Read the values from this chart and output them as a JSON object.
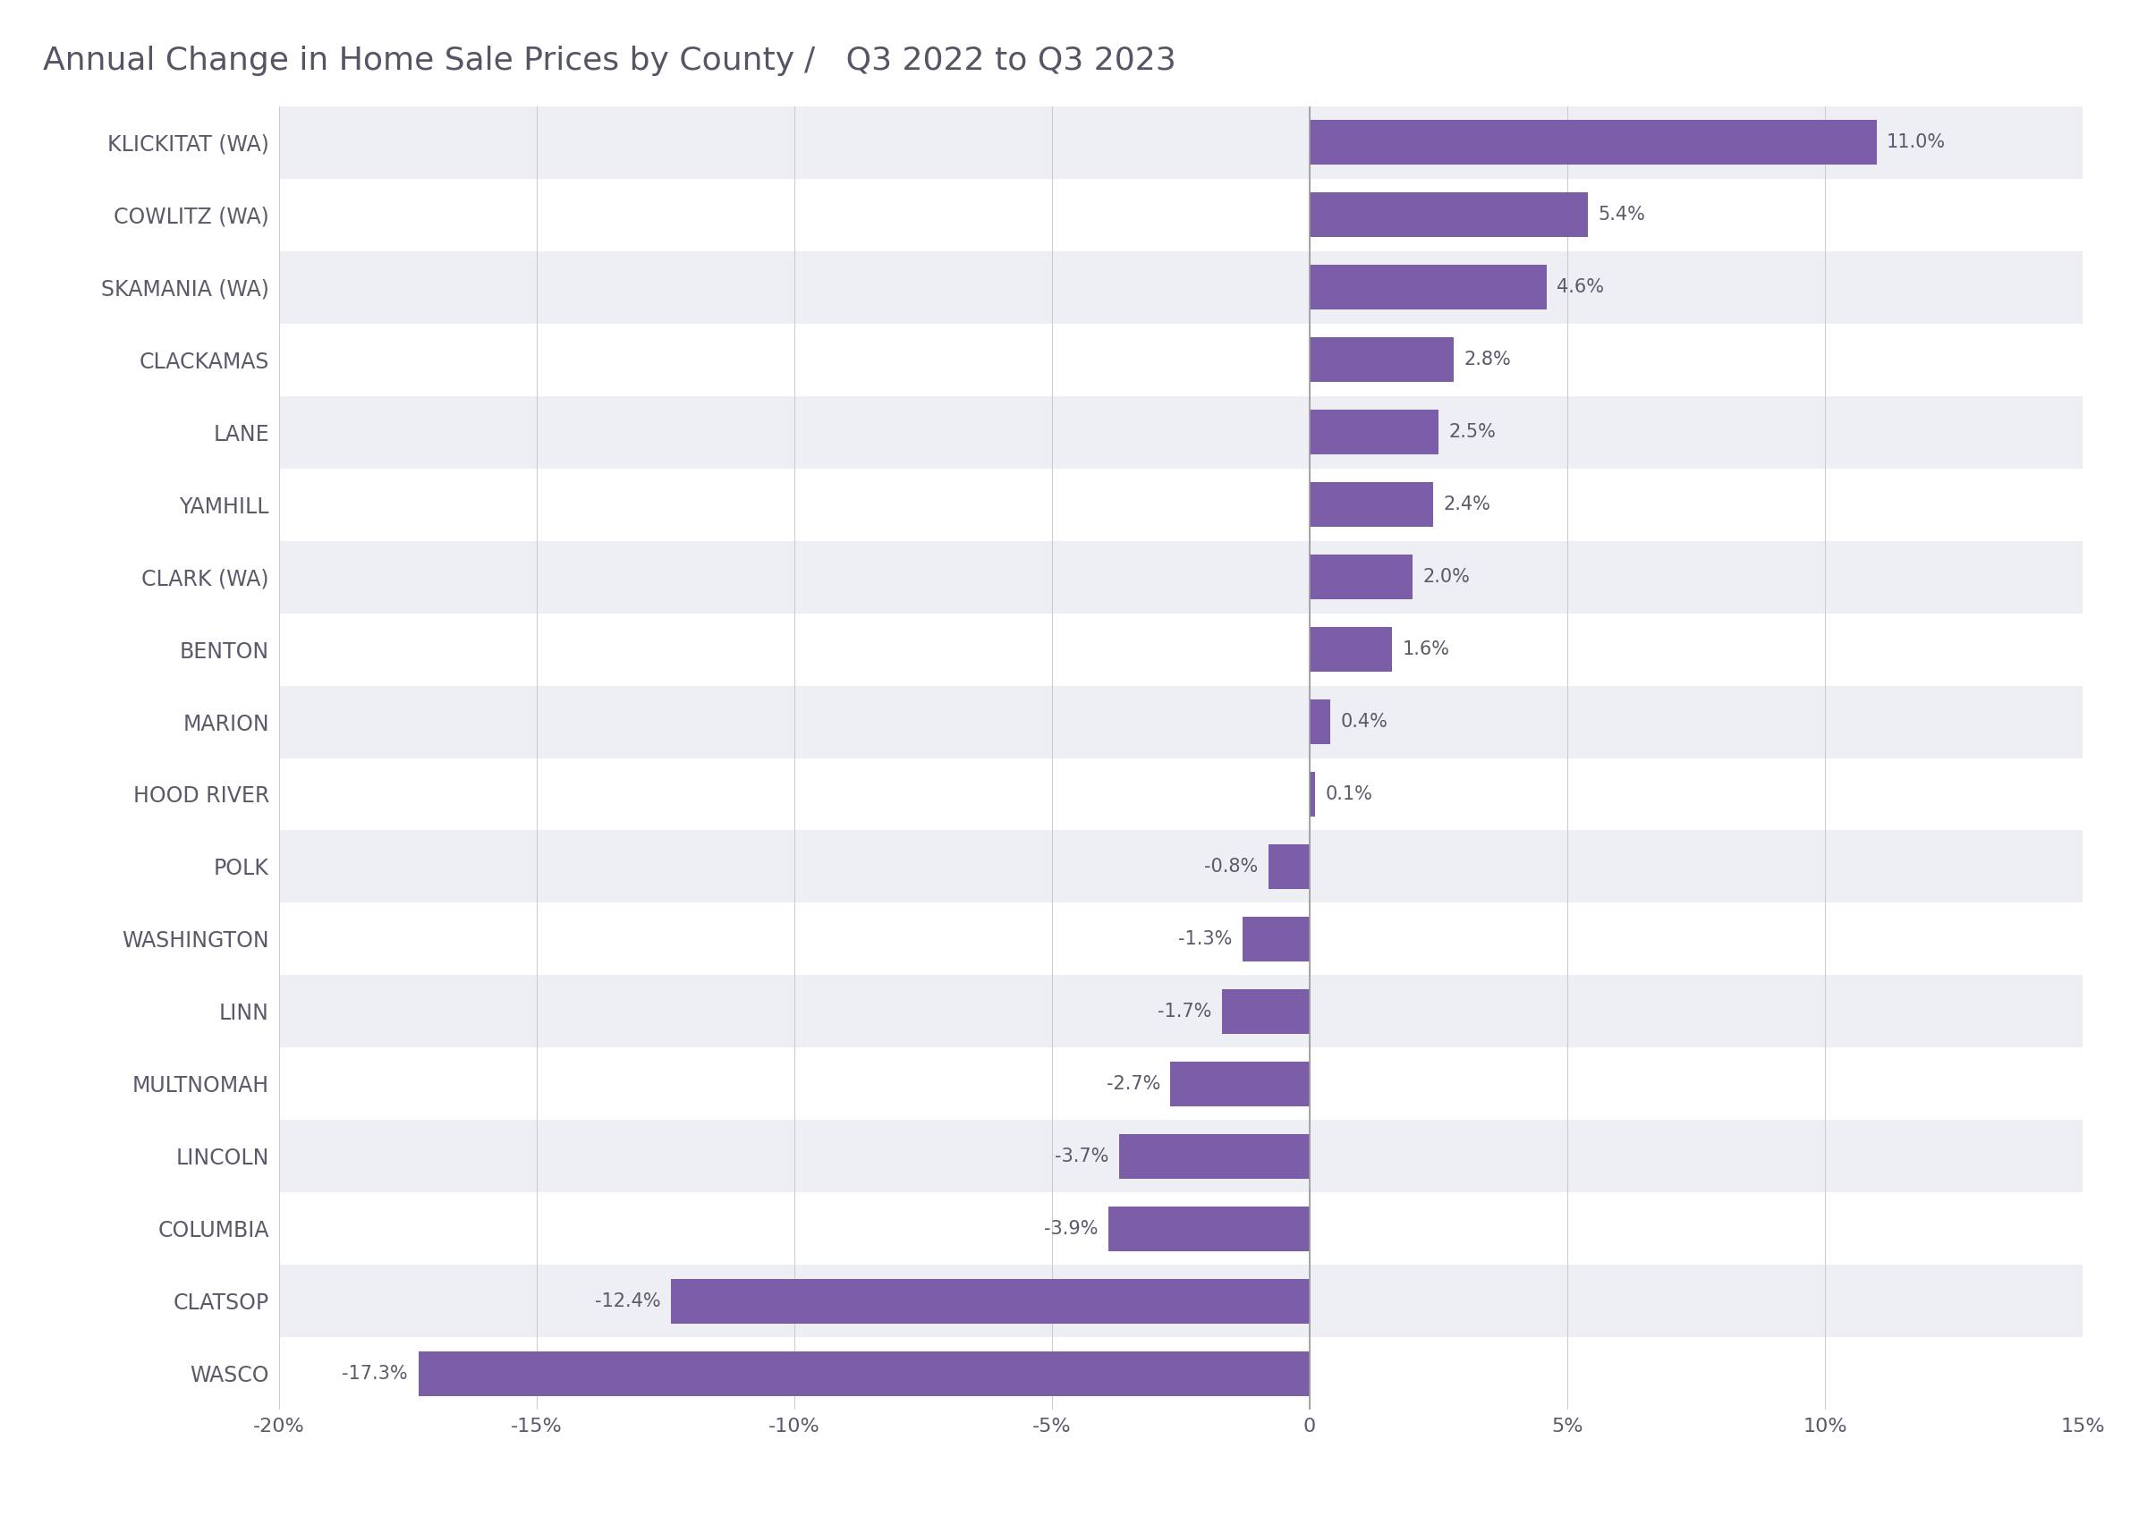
{
  "title_part1": "Annual Change in Home Sale Prices by County",
  "title_part2": "  /   Q3 2022 to Q3 2023",
  "categories": [
    "KLICKITAT (WA)",
    "COWLITZ (WA)",
    "SKAMANIA (WA)",
    "CLACKAMAS",
    "LANE",
    "YAMHILL",
    "CLARK (WA)",
    "BENTON",
    "MARION",
    "HOOD RIVER",
    "POLK",
    "WASHINGTON",
    "LINN",
    "MULTNOMAH",
    "LINCOLN",
    "COLUMBIA",
    "CLATSOP",
    "WASCO"
  ],
  "values": [
    11.0,
    5.4,
    4.6,
    2.8,
    2.5,
    2.4,
    2.0,
    1.6,
    0.4,
    0.1,
    -0.8,
    -1.3,
    -1.7,
    -2.7,
    -3.7,
    -3.9,
    -12.4,
    -17.3
  ],
  "bar_color": "#7B5EA7",
  "label_color": "#5a5a6a",
  "title_color": "#555566",
  "background_color": "#FFFFFF",
  "row_alt_color": "#EEEFF4",
  "row_main_color": "#FFFFFF",
  "xlim": [
    -20,
    15
  ],
  "xticks": [
    -20,
    -15,
    -10,
    -5,
    0,
    5,
    10,
    15
  ],
  "xtick_labels": [
    "-20%",
    "-15%",
    "-10%",
    "-5%",
    "0",
    "5%",
    "10%",
    "15%"
  ],
  "title_fontsize": 26,
  "tick_fontsize": 16,
  "label_fontsize": 17,
  "value_fontsize": 15,
  "bar_height": 0.62
}
